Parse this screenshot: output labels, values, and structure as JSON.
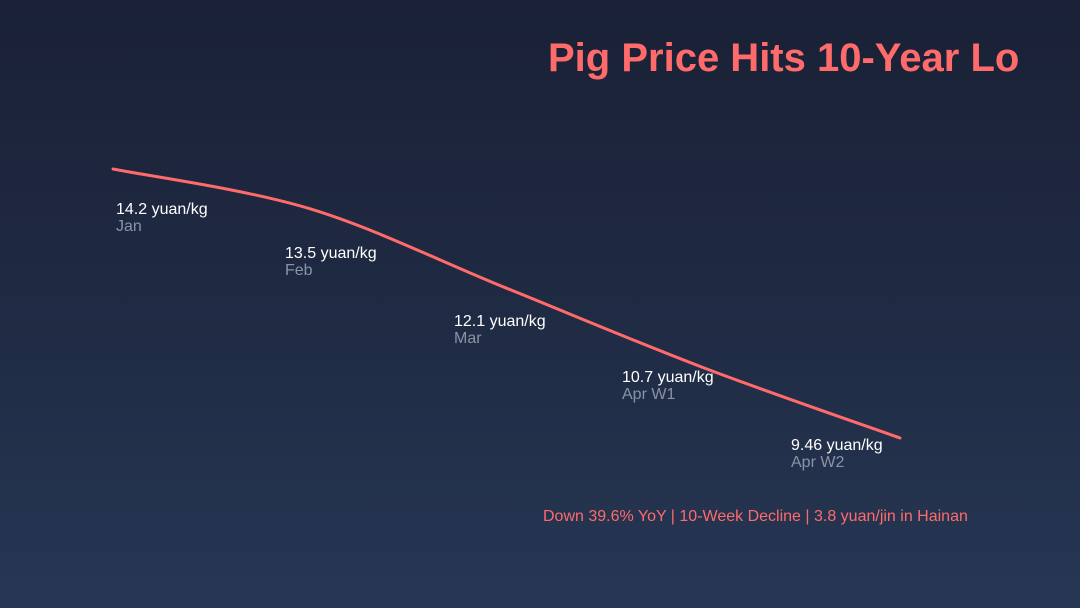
{
  "title": "Pig Price Hits 10-Year Lo",
  "subtitle": "Down 39.6% YoY | 10-Week Decline | 3.8 yuan/jin in Hainan",
  "colors": {
    "accent": "#ff6b6b",
    "value_label": "#ffffff",
    "category_label": "#8a93a6"
  },
  "chart_data": {
    "type": "line",
    "title": "Pig Price Hits 10-Year Lo",
    "categories": [
      "Jan",
      "Feb",
      "Mar",
      "Apr W1",
      "Apr W2"
    ],
    "values": [
      14.2,
      13.5,
      12.1,
      10.7,
      9.46
    ],
    "value_labels": [
      "14.2 yuan/kg",
      "13.5 yuan/kg",
      "12.1 yuan/kg",
      "10.7 yuan/kg",
      "9.46 yuan/kg"
    ],
    "grid": false,
    "legend": "none"
  }
}
